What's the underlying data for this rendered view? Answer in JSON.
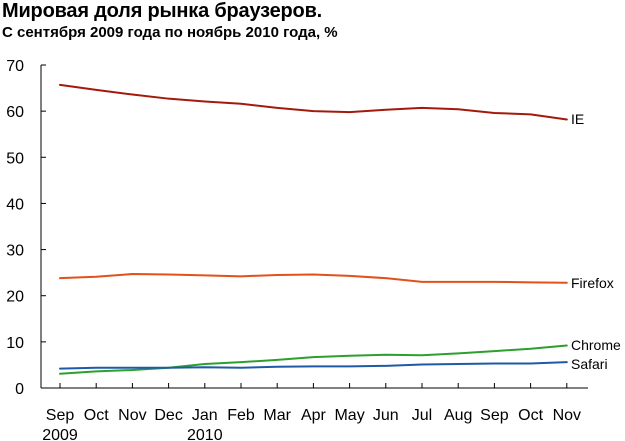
{
  "chart_data": {
    "type": "line",
    "title": "Мировая доля рынка браузеров.",
    "subtitle": "С сентября 2009 года по ноябрь 2010 года, %",
    "xlabel": "",
    "ylabel": "",
    "ylim": [
      0,
      70
    ],
    "yticks": [
      "0",
      "10",
      "20",
      "30",
      "40",
      "50",
      "60",
      "70"
    ],
    "categories": [
      "Sep",
      "Oct",
      "Nov",
      "Dec",
      "Jan",
      "Feb",
      "Mar",
      "Apr",
      "May",
      "Jun",
      "Jul",
      "Aug",
      "Sep",
      "Oct",
      "Nov"
    ],
    "year_labels": [
      {
        "index": 0,
        "text": "2009"
      },
      {
        "index": 4,
        "text": "2010"
      }
    ],
    "grid": false,
    "legend": "none (labels at line ends)",
    "series": [
      {
        "name": "IE",
        "color": "#a31a0c",
        "values": [
          65.7,
          64.6,
          63.6,
          62.7,
          62.1,
          61.6,
          60.7,
          60.0,
          59.8,
          60.3,
          60.7,
          60.4,
          59.6,
          59.3,
          58.2
        ]
      },
      {
        "name": "Firefox",
        "color": "#e0511b",
        "values": [
          23.8,
          24.1,
          24.7,
          24.6,
          24.4,
          24.2,
          24.5,
          24.6,
          24.3,
          23.8,
          23.0,
          23.0,
          23.0,
          22.9,
          22.8
        ]
      },
      {
        "name": "Chrome",
        "color": "#2ca02c",
        "values": [
          3.1,
          3.6,
          3.9,
          4.4,
          5.2,
          5.6,
          6.1,
          6.7,
          7.0,
          7.2,
          7.1,
          7.5,
          8.0,
          8.5,
          9.2
        ]
      },
      {
        "name": "Safari",
        "color": "#1f5aa6",
        "values": [
          4.2,
          4.4,
          4.4,
          4.4,
          4.5,
          4.4,
          4.6,
          4.7,
          4.7,
          4.8,
          5.1,
          5.2,
          5.3,
          5.3,
          5.6
        ]
      }
    ]
  }
}
